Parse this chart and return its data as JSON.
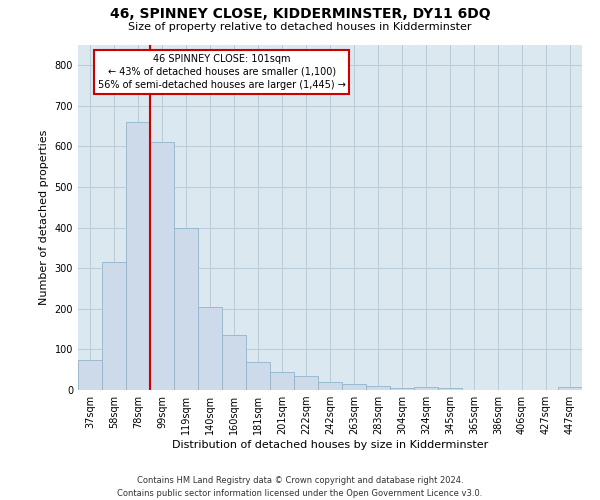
{
  "title": "46, SPINNEY CLOSE, KIDDERMINSTER, DY11 6DQ",
  "subtitle": "Size of property relative to detached houses in Kidderminster",
  "xlabel": "Distribution of detached houses by size in Kidderminster",
  "ylabel": "Number of detached properties",
  "footer_line1": "Contains HM Land Registry data © Crown copyright and database right 2024.",
  "footer_line2": "Contains public sector information licensed under the Open Government Licence v3.0.",
  "bar_labels": [
    "37sqm",
    "58sqm",
    "78sqm",
    "99sqm",
    "119sqm",
    "140sqm",
    "160sqm",
    "181sqm",
    "201sqm",
    "222sqm",
    "242sqm",
    "263sqm",
    "283sqm",
    "304sqm",
    "324sqm",
    "345sqm",
    "365sqm",
    "386sqm",
    "406sqm",
    "427sqm",
    "447sqm"
  ],
  "bar_values": [
    75,
    315,
    660,
    610,
    400,
    205,
    135,
    70,
    45,
    35,
    20,
    15,
    10,
    5,
    8,
    5,
    0,
    0,
    0,
    0,
    8
  ],
  "bar_color": "#ccdaea",
  "bar_edge_color": "#92b4cc",
  "ylim": [
    0,
    850
  ],
  "yticks": [
    0,
    100,
    200,
    300,
    400,
    500,
    600,
    700,
    800
  ],
  "property_label": "46 SPINNEY CLOSE: 101sqm",
  "annotation_line1": "← 43% of detached houses are smaller (1,100)",
  "annotation_line2": "56% of semi-detached houses are larger (1,445) →",
  "vline_color": "#cc0000",
  "annotation_box_facecolor": "#ffffff",
  "annotation_box_edgecolor": "#cc0000",
  "grid_color": "#b8ccd8",
  "background_color": "#dce8f0",
  "title_fontsize": 10,
  "subtitle_fontsize": 8,
  "tick_fontsize": 7,
  "ylabel_fontsize": 8,
  "xlabel_fontsize": 8
}
